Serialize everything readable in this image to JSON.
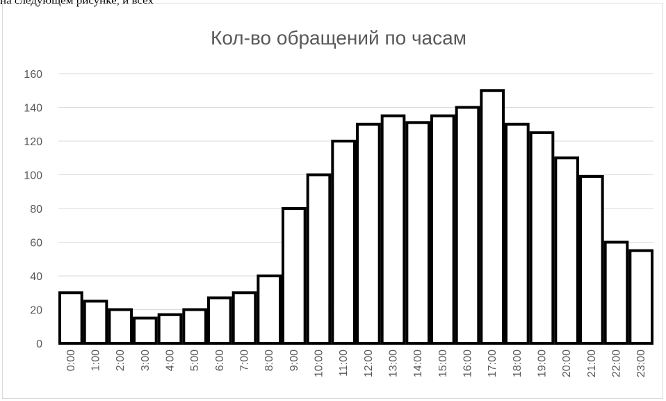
{
  "caption": "на следующем рисунке, и всех",
  "chart_data": {
    "type": "bar",
    "title": "Кол-во обращений по часам",
    "categories": [
      "0:00",
      "1:00",
      "2:00",
      "3:00",
      "4:00",
      "5:00",
      "6:00",
      "7:00",
      "8:00",
      "9:00",
      "10:00",
      "11:00",
      "12:00",
      "13:00",
      "14:00",
      "15:00",
      "16:00",
      "17:00",
      "18:00",
      "19:00",
      "20:00",
      "21:00",
      "22:00",
      "23:00"
    ],
    "values": [
      30,
      25,
      20,
      15,
      17,
      20,
      27,
      30,
      40,
      80,
      100,
      120,
      130,
      135,
      131,
      135,
      140,
      150,
      130,
      125,
      110,
      99,
      60,
      55
    ],
    "y_ticks": [
      "0",
      "20",
      "40",
      "60",
      "80",
      "100",
      "120",
      "140",
      "160"
    ],
    "ylim": [
      0,
      160
    ],
    "xlabel": "",
    "ylabel": "",
    "grid": true,
    "legend": "none",
    "colors": {
      "bar_fill": "#ffffff",
      "bar_stroke": "#000000",
      "grid": "#d9d9d9",
      "text": "#595959"
    }
  }
}
